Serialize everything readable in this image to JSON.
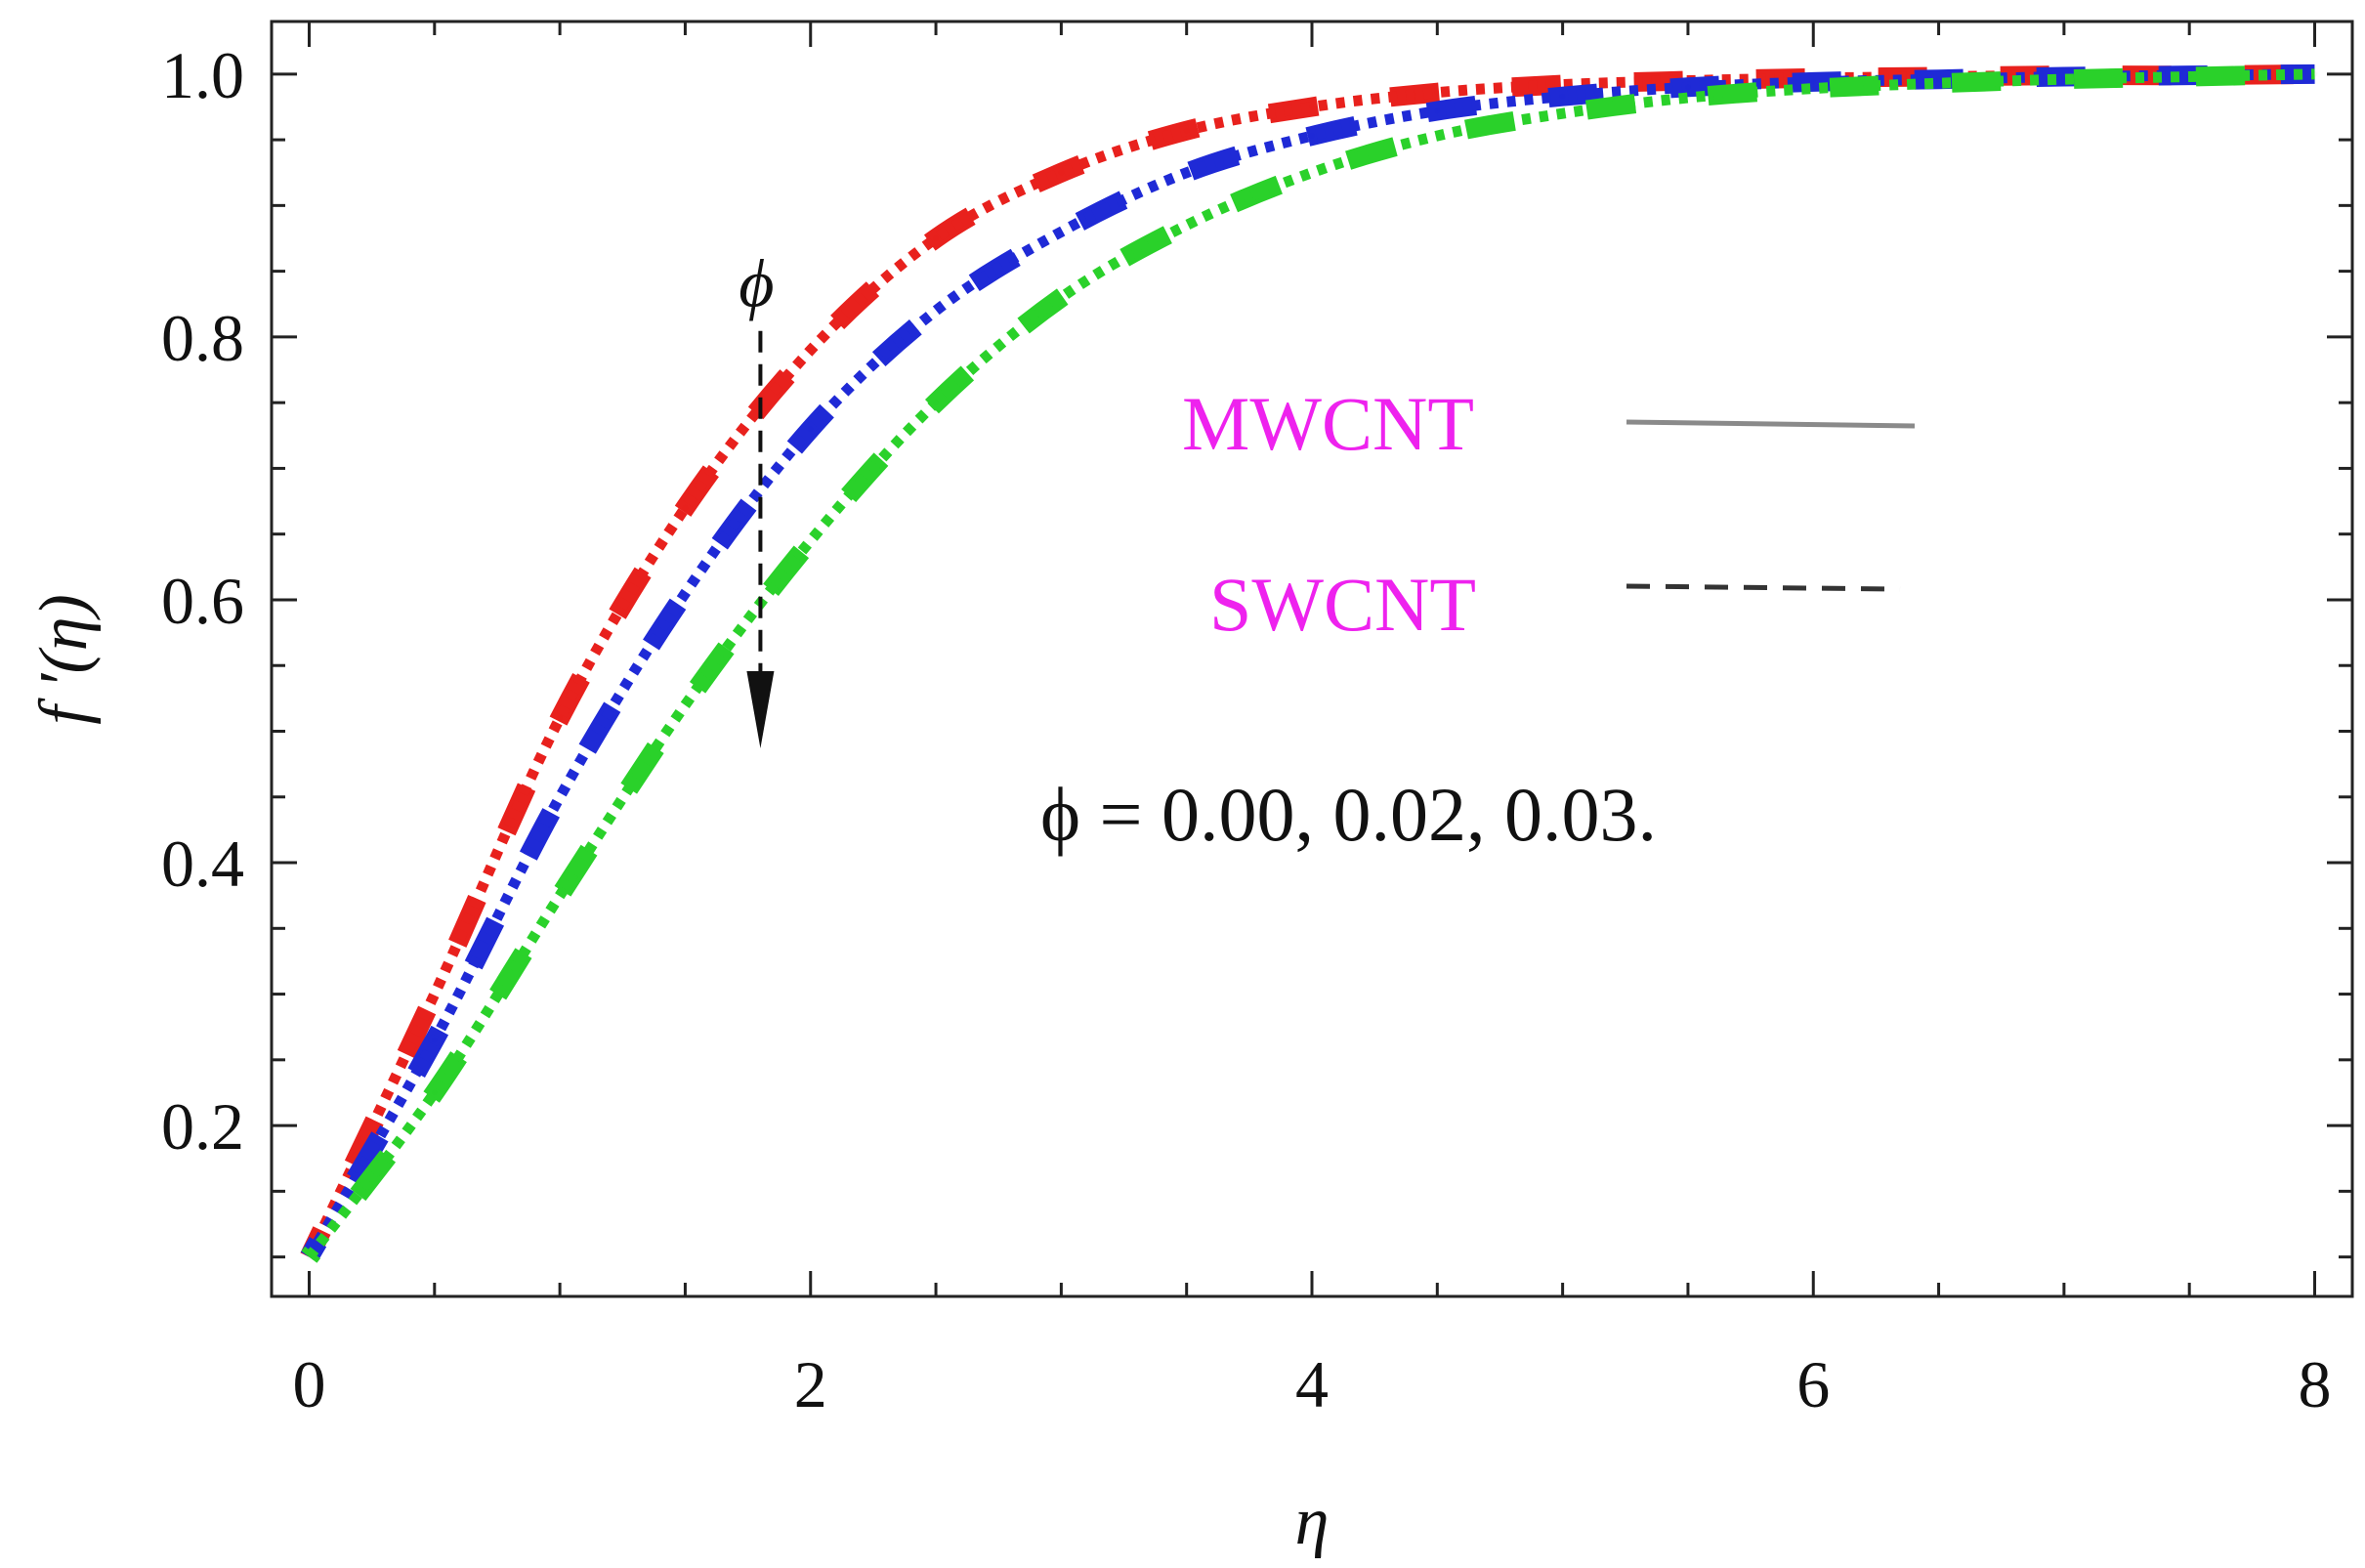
{
  "chart_data": {
    "type": "line",
    "xlabel": "η",
    "ylabel": "f ′(η)",
    "xlim": [
      -0.15,
      8.15
    ],
    "ylim": [
      0.07,
      1.04
    ],
    "x_ticks": [
      0,
      2,
      4,
      6,
      8
    ],
    "x_tick_labels": [
      "0",
      "2",
      "4",
      "6",
      "8"
    ],
    "y_ticks": [
      0.2,
      0.4,
      0.6,
      0.8,
      1.0
    ],
    "y_tick_labels": [
      "0.2",
      "0.4",
      "0.6",
      "0.8",
      "1.0"
    ],
    "x_minor_step": 0.5,
    "y_minor_step": 0.05,
    "x": [
      0,
      0.5,
      1,
      1.5,
      2,
      2.5,
      3,
      3.5,
      4,
      4.5,
      5,
      5.5,
      6,
      6.5,
      7,
      7.5,
      8
    ],
    "series": [
      {
        "name": "φ = 0.00",
        "color": "#e8211d",
        "values": [
          0.1,
          0.3,
          0.51,
          0.67,
          0.79,
          0.875,
          0.925,
          0.957,
          0.975,
          0.986,
          0.992,
          0.995,
          0.997,
          0.998,
          0.999,
          0.999,
          1.0
        ]
      },
      {
        "name": "φ = 0.02",
        "color": "#1f2ad6",
        "values": [
          0.1,
          0.265,
          0.45,
          0.605,
          0.73,
          0.82,
          0.88,
          0.925,
          0.953,
          0.972,
          0.983,
          0.99,
          0.994,
          0.996,
          0.998,
          0.999,
          1.0
        ]
      },
      {
        "name": "φ = 0.03",
        "color": "#2ad12a",
        "values": [
          0.1,
          0.225,
          0.375,
          0.52,
          0.645,
          0.75,
          0.83,
          0.885,
          0.925,
          0.953,
          0.97,
          0.982,
          0.989,
          0.993,
          0.996,
          0.998,
          1.0
        ]
      }
    ],
    "legend": [
      {
        "label": "MWCNT",
        "style": "solid"
      },
      {
        "label": "SWCNT",
        "style": "dashed"
      }
    ],
    "legend_color": "#ee22ee",
    "annotation": {
      "arrow_label": "ϕ",
      "direction": "down",
      "arrow_x": 1.8,
      "arrow_from": 0.76,
      "arrow_to": 0.49,
      "text": "ϕ = 0.00, 0.02, 0.03."
    }
  }
}
